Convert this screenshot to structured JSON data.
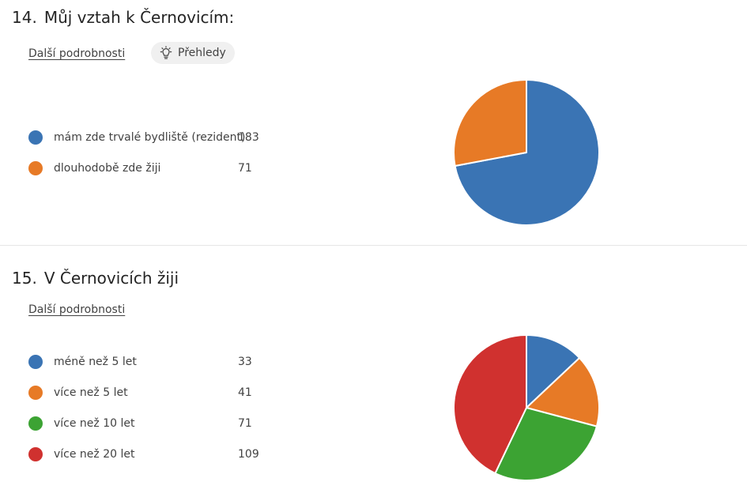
{
  "details_label": "Další podrobnosti",
  "questions": [
    {
      "number": "14.",
      "title": "Můj vztah k Černovicím:",
      "insights_label": "Přehledy",
      "legend": [
        {
          "label": "mám zde trvalé bydliště (rezident)",
          "count": "183",
          "color": "#3a74b4"
        },
        {
          "label": "dlouhodobě zde žiji",
          "count": "71",
          "color": "#e77a26"
        }
      ]
    },
    {
      "number": "15.",
      "title": "V Černovicích žiji",
      "legend": [
        {
          "label": "méně než 5 let",
          "count": "33",
          "color": "#3a74b4"
        },
        {
          "label": "více než 5 let",
          "count": "41",
          "color": "#e77a26"
        },
        {
          "label": "více než 10 let",
          "count": "71",
          "color": "#3ca333"
        },
        {
          "label": "více než 20 let",
          "count": "109",
          "color": "#d0312f"
        }
      ]
    }
  ],
  "chart_data": [
    {
      "type": "pie",
      "title": "Můj vztah k Černovicím:",
      "categories": [
        "mám zde trvalé bydliště (rezident)",
        "dlouhodobě zde žiji"
      ],
      "values": [
        183,
        71
      ],
      "colors": [
        "#3a74b4",
        "#e77a26"
      ]
    },
    {
      "type": "pie",
      "title": "V Černovicích žiji",
      "categories": [
        "méně než 5 let",
        "více než 5 let",
        "více než 10 let",
        "více než 20 let"
      ],
      "values": [
        33,
        41,
        71,
        109
      ],
      "colors": [
        "#3a74b4",
        "#e77a26",
        "#3ca333",
        "#d0312f"
      ]
    }
  ]
}
